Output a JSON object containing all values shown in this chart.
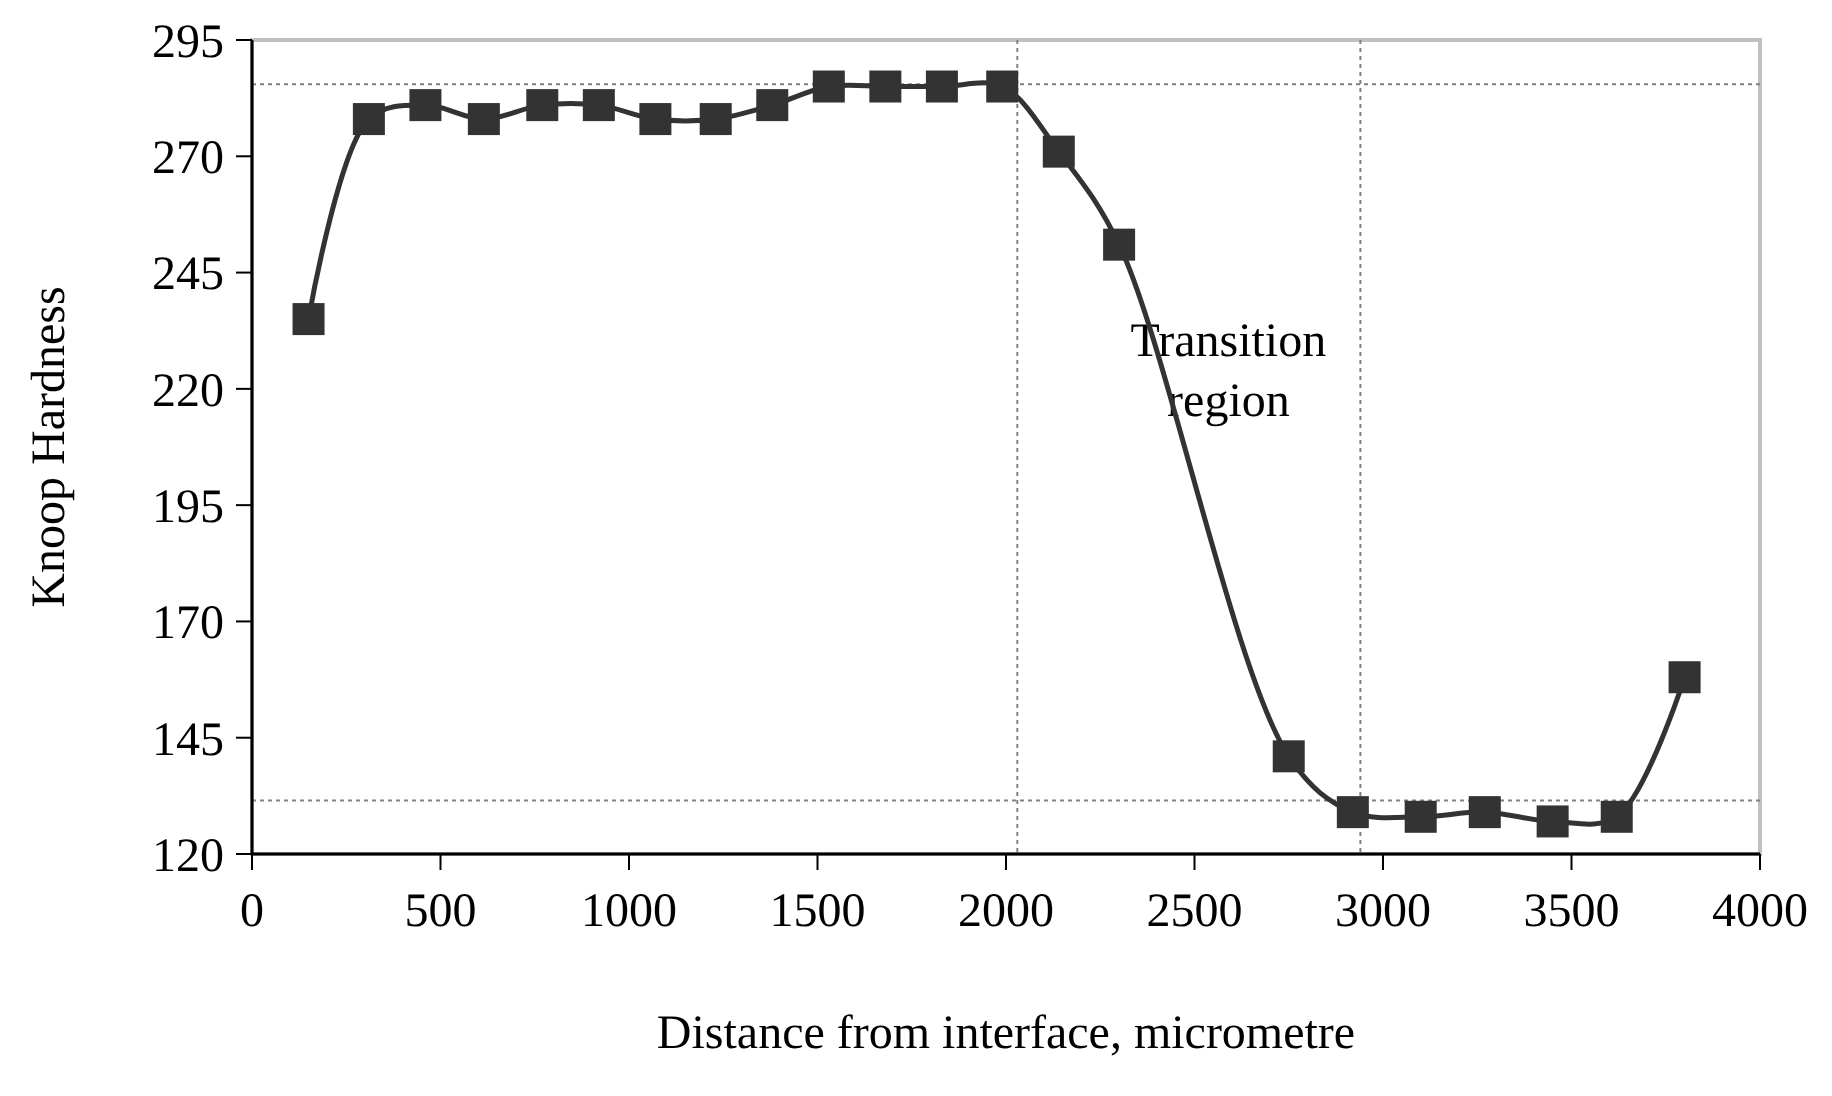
{
  "chart_data": {
    "type": "line",
    "xlabel": "Distance from interface, micrometre",
    "ylabel": "Knoop Hardness",
    "x": [
      150,
      310,
      460,
      615,
      770,
      920,
      1070,
      1230,
      1380,
      1530,
      1680,
      1830,
      1990,
      2140,
      2300,
      2750,
      2920,
      3100,
      3270,
      3450,
      3620,
      3800
    ],
    "series": [
      {
        "color": "#333333",
        "values": [
          235,
          278,
          281,
          278,
          281,
          281,
          278,
          278,
          281,
          285,
          285,
          285,
          285,
          271,
          251,
          141,
          129,
          128,
          129,
          127,
          128,
          158
        ]
      }
    ],
    "xlim": [
      0,
      4000
    ],
    "xticks": [
      0,
      500,
      1000,
      1500,
      2000,
      2500,
      3000,
      3500,
      4000
    ],
    "ylim": [
      120,
      295
    ],
    "yticks": [
      120,
      145,
      170,
      195,
      220,
      245,
      270,
      295
    ],
    "grid": false,
    "marker": "square",
    "line_style": "solid",
    "annotations": [
      "Transition region"
    ],
    "ref_lines": [
      {
        "axis": "x",
        "value": 2030,
        "line_style": "dotted",
        "color": "#808080"
      },
      {
        "axis": "x",
        "value": 2940,
        "line_style": "dotted",
        "color": "#808080"
      },
      {
        "axis": "y",
        "value": 285.5,
        "line_style": "dotted",
        "color": "#808080"
      },
      {
        "axis": "y",
        "value": 131.5,
        "line_style": "dotted",
        "color": "#808080"
      }
    ]
  }
}
